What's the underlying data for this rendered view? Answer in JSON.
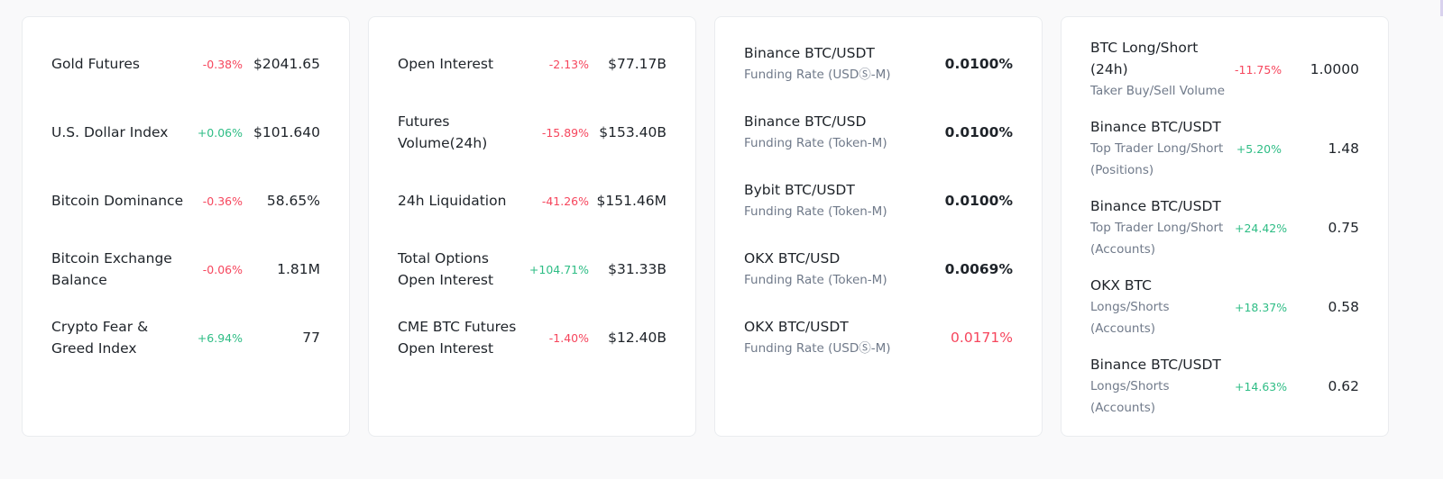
{
  "market_card": {
    "rows": [
      {
        "label": "Gold Futures",
        "change": "-0.38%",
        "value": "$2041.65"
      },
      {
        "label": "U.S. Dollar Index",
        "change": "+0.06%",
        "value": "$101.640"
      },
      {
        "label": "Bitcoin Dominance",
        "change": "-0.36%",
        "value": "58.65%"
      },
      {
        "label": "Bitcoin Exchange Balance",
        "change": "-0.06%",
        "value": "1.81M"
      },
      {
        "label": "Crypto Fear & Greed Index",
        "change": "+6.94%",
        "value": "77"
      }
    ]
  },
  "derivatives_card": {
    "rows": [
      {
        "label": "Open Interest",
        "change": "-2.13%",
        "value": "$77.17B"
      },
      {
        "label": "Futures Volume(24h)",
        "change": "-15.89%",
        "value": "$153.40B"
      },
      {
        "label": "24h Liquidation",
        "change": "-41.26%",
        "value": "$151.46M"
      },
      {
        "label": "Total Options Open Interest",
        "change": "+104.71%",
        "value": "$31.33B"
      },
      {
        "label": "CME BTC Futures Open Interest",
        "change": "-1.40%",
        "value": "$12.40B"
      }
    ]
  },
  "funding_card": {
    "rows": [
      {
        "label": "Binance BTC/USDT",
        "sublabel": "Funding Rate (USDⓈ-M)",
        "value": "0.0100%"
      },
      {
        "label": "Binance BTC/USD",
        "sublabel": "Funding Rate (Token-M)",
        "value": "0.0100%"
      },
      {
        "label": "Bybit BTC/USDT",
        "sublabel": "Funding Rate (Token-M)",
        "value": "0.0100%"
      },
      {
        "label": "OKX BTC/USD",
        "sublabel": "Funding Rate (Token-M)",
        "value": "0.0069%"
      },
      {
        "label": "OKX BTC/USDT",
        "sublabel": "Funding Rate (USDⓈ-M)",
        "value": "0.0171%"
      }
    ]
  },
  "ratio_card": {
    "rows": [
      {
        "label": "BTC Long/Short (24h)",
        "sublabel": "Taker Buy/Sell Volume",
        "change": "-11.75%",
        "value": "1.0000"
      },
      {
        "label": "Binance BTC/USDT",
        "sublabel": "Top Trader Long/Short (Positions)",
        "change": "+5.20%",
        "value": "1.48"
      },
      {
        "label": "Binance BTC/USDT",
        "sublabel": "Top Trader Long/Short (Accounts)",
        "change": "+24.42%",
        "value": "0.75"
      },
      {
        "label": "OKX BTC",
        "sublabel": "Longs/Shorts (Accounts)",
        "change": "+18.37%",
        "value": "0.58"
      },
      {
        "label": "Binance BTC/USDT",
        "sublabel": "Longs/Shorts (Accounts)",
        "change": "+14.63%",
        "value": "0.62"
      }
    ]
  },
  "colors": {
    "negative": "#f6465d",
    "positive": "#2ebd85",
    "text": "#1e2329",
    "muted": "#707a8a"
  }
}
